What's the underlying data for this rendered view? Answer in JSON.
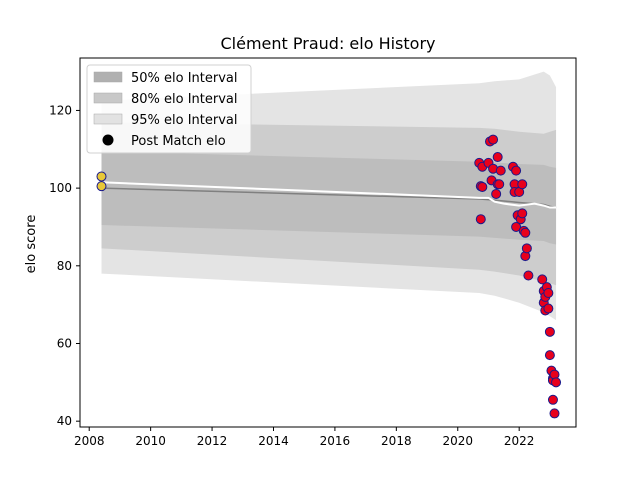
{
  "chart_data": {
    "type": "scatter",
    "title": "Clément Praud: elo History",
    "xlabel": "",
    "ylabel": "elo score",
    "xlim": [
      2007.7,
      2023.85
    ],
    "ylim": [
      38.5,
      133.5
    ],
    "xticks": [
      2008,
      2010,
      2012,
      2014,
      2016,
      2018,
      2020,
      2022
    ],
    "yticks": [
      40,
      60,
      80,
      100,
      120
    ],
    "legend_position": "upper-left",
    "legend": [
      {
        "label": "50% elo Interval",
        "kind": "band",
        "color": "#b0b0b0"
      },
      {
        "label": "80% elo Interval",
        "kind": "band",
        "color": "#c8c8c8"
      },
      {
        "label": "95% elo Interval",
        "kind": "band",
        "color": "#e2e2e2"
      },
      {
        "label": "Post Match elo",
        "kind": "marker",
        "color": "#000000"
      }
    ],
    "colors": {
      "band95": "#e4e4e4",
      "band80": "#cdcdcd",
      "band50": "#bdbdbd",
      "mean_line": "#808080",
      "expected_line": "#ffffff",
      "early_point_fill": "#e8c838",
      "point_fill": "#e8001c",
      "point_edge": "#1a1a8c"
    },
    "intervals": {
      "x": [
        2008.4,
        2020.7,
        2021.2,
        2022.0,
        2022.8,
        2023.0,
        2023.2
      ],
      "mean": [
        100,
        97.2,
        96.9,
        96.3,
        95.8,
        95.3,
        95
      ],
      "p50_low": [
        90.5,
        87.5,
        87.2,
        86.7,
        86.4,
        85.8,
        85.5
      ],
      "p50_high": [
        109.5,
        106.8,
        106.6,
        106.2,
        106.0,
        105.5,
        105.2
      ],
      "p80_low": [
        84.5,
        79.0,
        78.5,
        77.5,
        76.0,
        75.5,
        75.0
      ],
      "p80_high": [
        117.0,
        115.5,
        115.3,
        114.5,
        114.0,
        114.5,
        115.0
      ],
      "p95_low": [
        78.0,
        73.0,
        72.3,
        70.5,
        68.0,
        67.0,
        66.0
      ],
      "p95_high": [
        122.5,
        127.0,
        127.5,
        128.0,
        130.0,
        129.0,
        126.0
      ]
    },
    "expected_line": {
      "x": [
        2008.4,
        2020.7,
        2021.0,
        2021.2,
        2021.5,
        2022.0,
        2022.5,
        2022.8,
        2023.0,
        2023.2
      ],
      "y": [
        101.5,
        97.5,
        97.5,
        96.5,
        96.0,
        95.5,
        96.0,
        95.5,
        95.0,
        95.0
      ]
    },
    "series": [
      {
        "name": "",
        "fill": "#e8c838",
        "points": [
          [
            2008.4,
            103
          ],
          [
            2008.4,
            100.5
          ]
        ]
      },
      {
        "name": "",
        "fill": "#e8001c",
        "points": [
          [
            2020.7,
            106.5
          ],
          [
            2020.75,
            100.5
          ],
          [
            2020.8,
            100.3
          ],
          [
            2020.8,
            105.5
          ],
          [
            2020.75,
            92
          ],
          [
            2021.0,
            106.5
          ],
          [
            2021.05,
            112
          ],
          [
            2021.1,
            102
          ],
          [
            2021.15,
            112.5
          ],
          [
            2021.15,
            105
          ],
          [
            2021.25,
            98.5
          ],
          [
            2021.3,
            108
          ],
          [
            2021.3,
            101
          ],
          [
            2021.35,
            101
          ],
          [
            2021.4,
            104.5
          ],
          [
            2021.8,
            105.5
          ],
          [
            2021.85,
            101
          ],
          [
            2021.85,
            99
          ],
          [
            2021.9,
            104.5
          ],
          [
            2021.9,
            90
          ],
          [
            2021.95,
            93
          ],
          [
            2022.0,
            99
          ],
          [
            2022.05,
            92
          ],
          [
            2022.1,
            101
          ],
          [
            2022.1,
            93.5
          ],
          [
            2022.15,
            89
          ],
          [
            2022.2,
            88.5
          ],
          [
            2022.2,
            82.5
          ],
          [
            2022.25,
            84.5
          ],
          [
            2022.3,
            77.5
          ],
          [
            2022.75,
            76.5
          ],
          [
            2022.8,
            73.5
          ],
          [
            2022.8,
            70.5
          ],
          [
            2022.85,
            72
          ],
          [
            2022.85,
            68.5
          ],
          [
            2022.9,
            74.5
          ],
          [
            2022.95,
            73
          ],
          [
            2022.95,
            69
          ],
          [
            2023.0,
            63
          ],
          [
            2023.0,
            57
          ],
          [
            2023.05,
            53
          ],
          [
            2023.1,
            51
          ],
          [
            2023.1,
            50.5
          ],
          [
            2023.15,
            52
          ],
          [
            2023.1,
            45.5
          ],
          [
            2023.2,
            50
          ],
          [
            2023.15,
            42
          ]
        ]
      }
    ]
  }
}
